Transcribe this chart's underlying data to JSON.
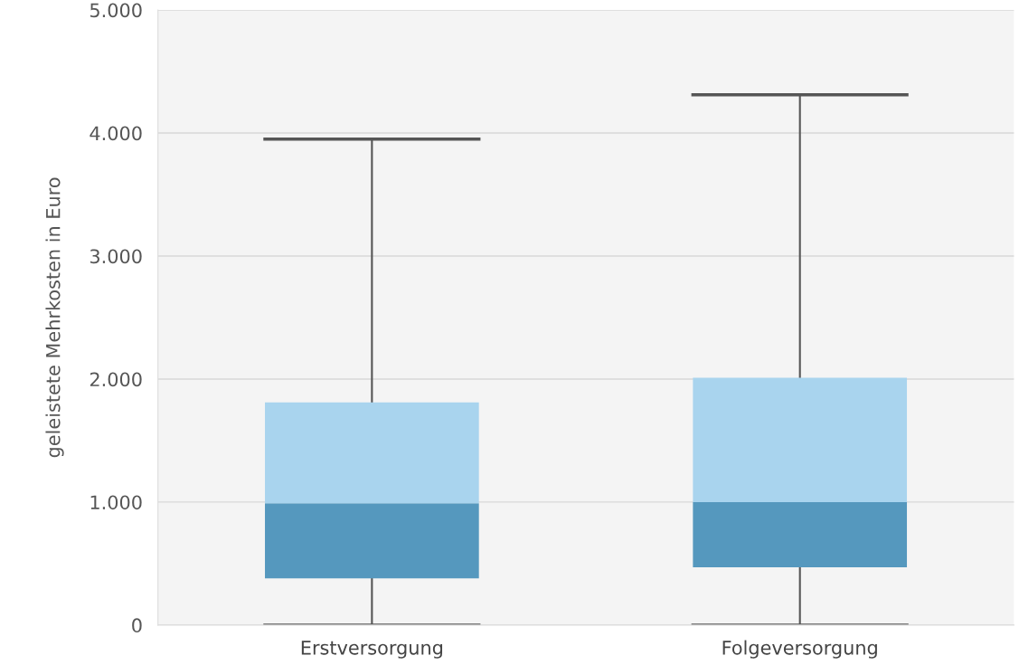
{
  "chart_data": {
    "type": "box",
    "ylabel": "geleistete Mehrkosten in Euro",
    "categories": [
      "Erstversorgung",
      "Folgeversorgung"
    ],
    "boxes": [
      {
        "low": 0,
        "q1": 380,
        "median": 990,
        "q3": 1810,
        "high": 3950
      },
      {
        "low": 0,
        "q1": 470,
        "median": 1000,
        "q3": 2010,
        "high": 4310
      }
    ],
    "colors": [
      [
        "#5598be",
        "#a9d4ee"
      ],
      [
        "#5598be",
        "#a9d4ee"
      ]
    ],
    "ylim": [
      0,
      5000
    ],
    "yticks": [
      {
        "value": 0,
        "label": "0"
      },
      {
        "value": 1000,
        "label": "1.000"
      },
      {
        "value": 2000,
        "label": "2.000"
      },
      {
        "value": 3000,
        "label": "3.000"
      },
      {
        "value": 4000,
        "label": "4.000"
      },
      {
        "value": 5000,
        "label": "5.000"
      }
    ],
    "grid": "y"
  }
}
